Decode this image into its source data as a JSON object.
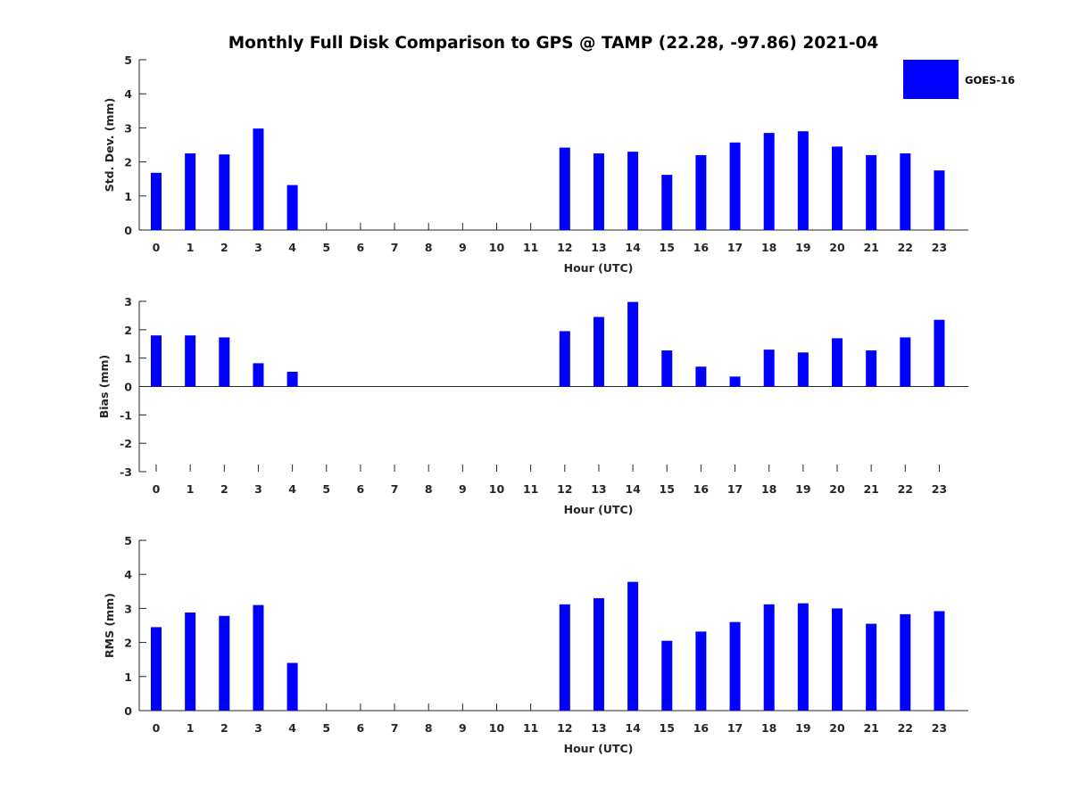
{
  "chart_data": {
    "type": "bar",
    "title": "Monthly Full Disk Comparison to GPS @ TAMP (22.28, -97.86) 2021-04",
    "legend": {
      "placement": "top-right",
      "entries": [
        {
          "name": "GOES-16",
          "color": "#0000ff"
        }
      ]
    },
    "categories": [
      "0",
      "1",
      "2",
      "3",
      "4",
      "5",
      "6",
      "7",
      "8",
      "9",
      "10",
      "11",
      "12",
      "13",
      "14",
      "15",
      "16",
      "17",
      "18",
      "19",
      "20",
      "21",
      "22",
      "23"
    ],
    "panels": [
      {
        "id": "std",
        "xlabel": "Hour (UTC)",
        "ylabel": "Std. Dev. (mm)",
        "ylim": [
          0,
          5
        ],
        "yticks": [
          "0",
          "1",
          "2",
          "3",
          "4",
          "5"
        ],
        "series": [
          {
            "name": "GOES-16",
            "color": "#0000ff",
            "values": [
              1.68,
              2.25,
              2.22,
              2.98,
              1.32,
              null,
              null,
              null,
              null,
              null,
              null,
              null,
              2.42,
              2.25,
              2.3,
              1.62,
              2.2,
              2.57,
              2.85,
              2.9,
              2.45,
              2.2,
              2.25,
              1.75
            ]
          }
        ]
      },
      {
        "id": "bias",
        "xlabel": "Hour (UTC)",
        "ylabel": "Bias (mm)",
        "ylim": [
          -3,
          3
        ],
        "yticks": [
          "-3",
          "-2",
          "-1",
          "0",
          "1",
          "2",
          "3"
        ],
        "series": [
          {
            "name": "GOES-16",
            "color": "#0000ff",
            "values": [
              1.8,
              1.8,
              1.73,
              0.82,
              0.52,
              null,
              null,
              null,
              null,
              null,
              null,
              null,
              1.95,
              2.45,
              2.98,
              1.27,
              0.7,
              0.35,
              1.3,
              1.2,
              1.7,
              1.27,
              1.73,
              2.35
            ]
          }
        ]
      },
      {
        "id": "rms",
        "xlabel": "Hour (UTC)",
        "ylabel": "RMS (mm)",
        "ylim": [
          0,
          5
        ],
        "yticks": [
          "0",
          "1",
          "2",
          "3",
          "4",
          "5"
        ],
        "series": [
          {
            "name": "GOES-16",
            "color": "#0000ff",
            "values": [
              2.45,
              2.88,
              2.78,
              3.1,
              1.4,
              null,
              null,
              null,
              null,
              null,
              null,
              null,
              3.12,
              3.3,
              3.78,
              2.05,
              2.32,
              2.6,
              3.12,
              3.15,
              3.0,
              2.55,
              2.83,
              2.92
            ]
          }
        ]
      }
    ]
  }
}
